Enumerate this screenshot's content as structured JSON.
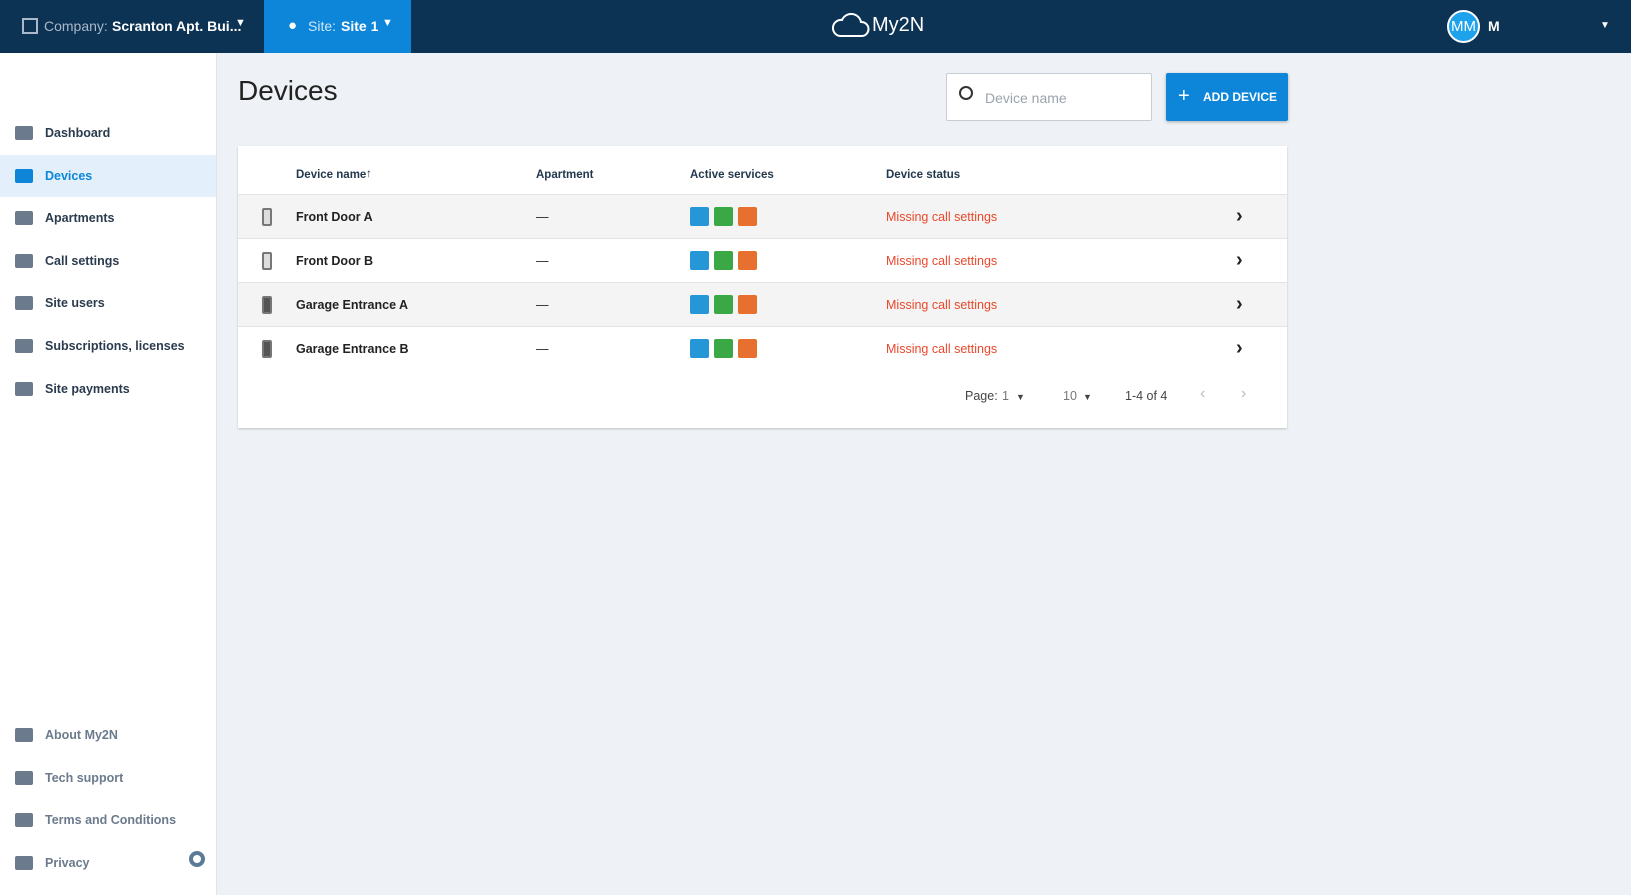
{
  "header": {
    "company_label": "Company:",
    "company": "Scranton Apt. Bui...",
    "site_label": "Site:",
    "site": "Site 1",
    "logo": "My2N",
    "avatar": "MM",
    "user": "M"
  },
  "sidebar": {
    "items": [
      "Dashboard",
      "Devices",
      "Apartments",
      "Call settings",
      "Site users",
      "Subscriptions, licenses",
      "Site payments"
    ],
    "active": 1,
    "bottom": [
      "About My2N",
      "Tech support",
      "Terms and Conditions",
      "Privacy"
    ]
  },
  "page": {
    "title": "Devices",
    "search_placeholder": "Device name",
    "add_button": "ADD DEVICE"
  },
  "table": {
    "columns": [
      "Device name",
      "Apartment",
      "Active services",
      "Device status"
    ],
    "rows": [
      [
        "Front Door A",
        "—",
        "Missing call settings"
      ],
      [
        "Front Door B",
        "—",
        "Missing call settings"
      ],
      [
        "Garage Entrance A",
        "—",
        "Missing call settings"
      ],
      [
        "Garage Entrance B",
        "—",
        "Missing call settings"
      ]
    ]
  },
  "pagination": {
    "page_label": "Page:",
    "page": "1",
    "per_page": "10",
    "range": "1-4 of 4"
  }
}
